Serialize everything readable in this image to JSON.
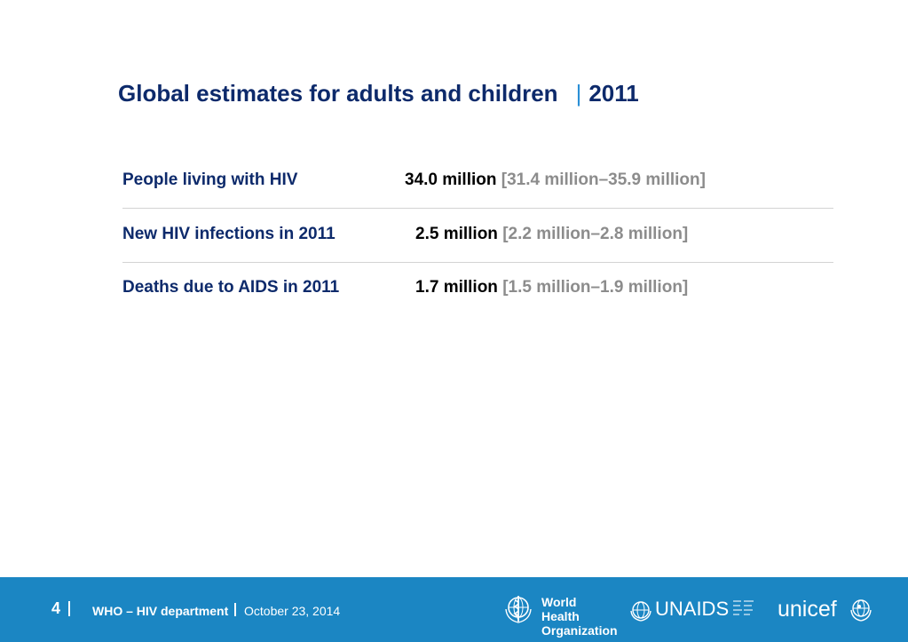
{
  "slide": {
    "title": "Global estimates for adults and children",
    "title_separator": "|",
    "title_year": "2011"
  },
  "rows": [
    {
      "label": "People living with HIV",
      "value": "34.0 million",
      "range": "[31.4 million–35.9 million]"
    },
    {
      "label": "New HIV infections in 2011",
      "value": "2.5 million",
      "range": "[2.2 million–2.8 million]"
    },
    {
      "label": "Deaths due to AIDS in 2011",
      "value": "1.7 million",
      "range": "[1.5 million–1.9 million]"
    }
  ],
  "footer": {
    "page_number": "4",
    "department": "WHO – HIV department",
    "date": "October 23, 2014",
    "logos": {
      "who": {
        "line1": "World Health",
        "line2": "Organization",
        "icon": "who-emblem-icon"
      },
      "unaids": {
        "text": "UNAIDS",
        "icon": "un-emblem-icon"
      },
      "unicef": {
        "text": "unicef",
        "icon": "unicef-emblem-icon"
      }
    }
  },
  "colors": {
    "title": "#0d2a6b",
    "separator": "#2a8fd6",
    "range_text": "#8c8c8c",
    "footer_bg": "#1b86c3"
  }
}
